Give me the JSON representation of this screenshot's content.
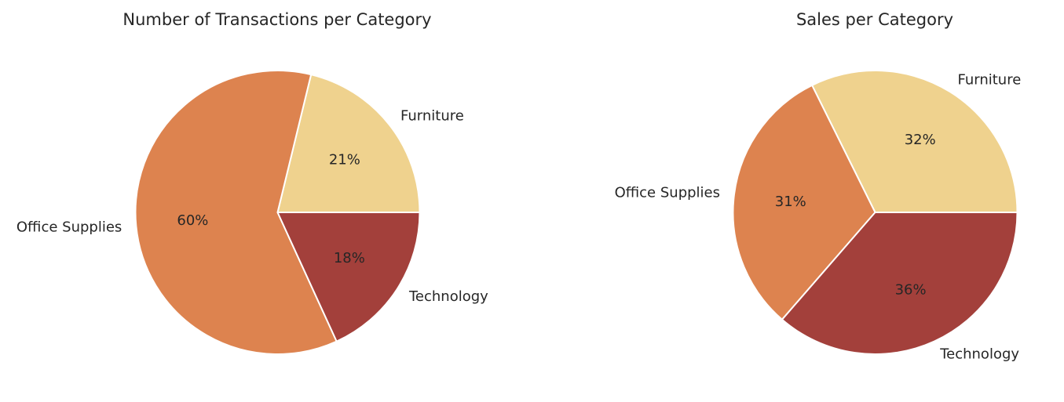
{
  "chart_data": [
    {
      "type": "pie",
      "title": "Number of Transactions per Category",
      "categories": [
        "Furniture",
        "Office Supplies",
        "Technology"
      ],
      "values": [
        21,
        60,
        18
      ],
      "value_labels": [
        "21%",
        "60%",
        "18%"
      ],
      "colors": [
        "#efd28e",
        "#dd834f",
        "#a3403b"
      ],
      "start_angle_deg": 0,
      "direction": "counterclockwise"
    },
    {
      "type": "pie",
      "title": "Sales per Category",
      "categories": [
        "Furniture",
        "Office Supplies",
        "Technology"
      ],
      "values": [
        32,
        31,
        36
      ],
      "value_labels": [
        "32%",
        "31%",
        "36%"
      ],
      "colors": [
        "#efd28e",
        "#dd834f",
        "#a3403b"
      ],
      "start_angle_deg": 0,
      "direction": "counterclockwise"
    }
  ]
}
